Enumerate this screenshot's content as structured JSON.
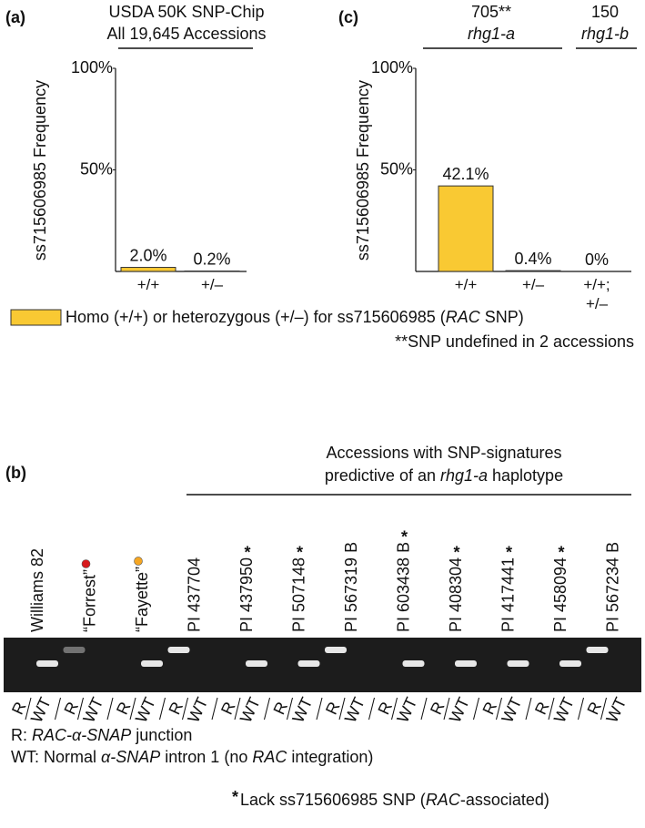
{
  "chart_data": [
    {
      "type": "bar",
      "panel": "(a)",
      "title": [
        "USDA 50K SNP-Chip",
        "All 19,645 Accessions"
      ],
      "y_label": "ss715606985 Frequency",
      "categories": [
        "+/+",
        "+/–"
      ],
      "values": [
        2.0,
        0.2
      ],
      "value_labels": [
        "2.0%",
        "0.2%"
      ],
      "color": "#f9c933",
      "ylim": [
        0,
        100
      ],
      "yticks": [
        {
          "value": 50,
          "label": "50%"
        },
        {
          "value": 100,
          "label": "100%"
        }
      ]
    },
    {
      "type": "bar",
      "panel": "(c)",
      "groups": [
        {
          "count": "705**",
          "name": "rhg1-a"
        },
        {
          "count": "150",
          "name": "rhg1-b"
        }
      ],
      "y_label": "ss715606985 Frequency",
      "categories": [
        "+/+",
        "+/–",
        "+/+;\n+/–"
      ],
      "values": [
        42.1,
        0.4,
        0
      ],
      "value_labels": [
        "42.1%",
        "0.4%",
        "0%"
      ],
      "color": "#f9c933",
      "ylim": [
        0,
        100
      ],
      "yticks": [
        {
          "value": 50,
          "label": "50%"
        },
        {
          "value": 100,
          "label": "100%"
        }
      ]
    }
  ],
  "legend": {
    "color": "#f9c933",
    "parts": [
      "Homo (+/+) or heterozygous (+/–) for ss715606985 (",
      "RAC",
      " SNP)"
    ]
  },
  "footnote": "**SNP undefined in 2 accessions",
  "gel": {
    "panel": "(b)",
    "heading": [
      [
        "Accessions with SNP-signatures"
      ],
      [
        "predictive of an ",
        "rhg1-a",
        " haplotype"
      ]
    ],
    "lane_labels": [
      "R",
      "WT"
    ],
    "samples": [
      {
        "name": "Williams 82"
      },
      {
        "name": "“Forrest”",
        "dot": "#d7191c"
      },
      {
        "name": "“Fayette”",
        "dot": "#f5a623"
      },
      {
        "name": "PI 437704"
      },
      {
        "name": "PI 437950",
        "star": "*"
      },
      {
        "name": "PI 507148",
        "star": "*"
      },
      {
        "name": "PI 567319 B"
      },
      {
        "name": "PI 603438 B",
        "star": "*"
      },
      {
        "name": "PI 408304",
        "star": "*"
      },
      {
        "name": "PI 417441",
        "star": "*"
      },
      {
        "name": "PI 458094",
        "star": "*"
      },
      {
        "name": "PI 567234 B"
      }
    ],
    "key": [
      [
        "R: ",
        "RAC-α-SNAP",
        " junction"
      ],
      [
        "WT: Normal ",
        "α-SNAP",
        " intron 1 (no ",
        "RAC",
        " integration)"
      ]
    ],
    "star_note": {
      "symbol": "*",
      "parts": [
        "Lack ss715606985 SNP (",
        "RAC",
        "-associated)"
      ]
    }
  }
}
